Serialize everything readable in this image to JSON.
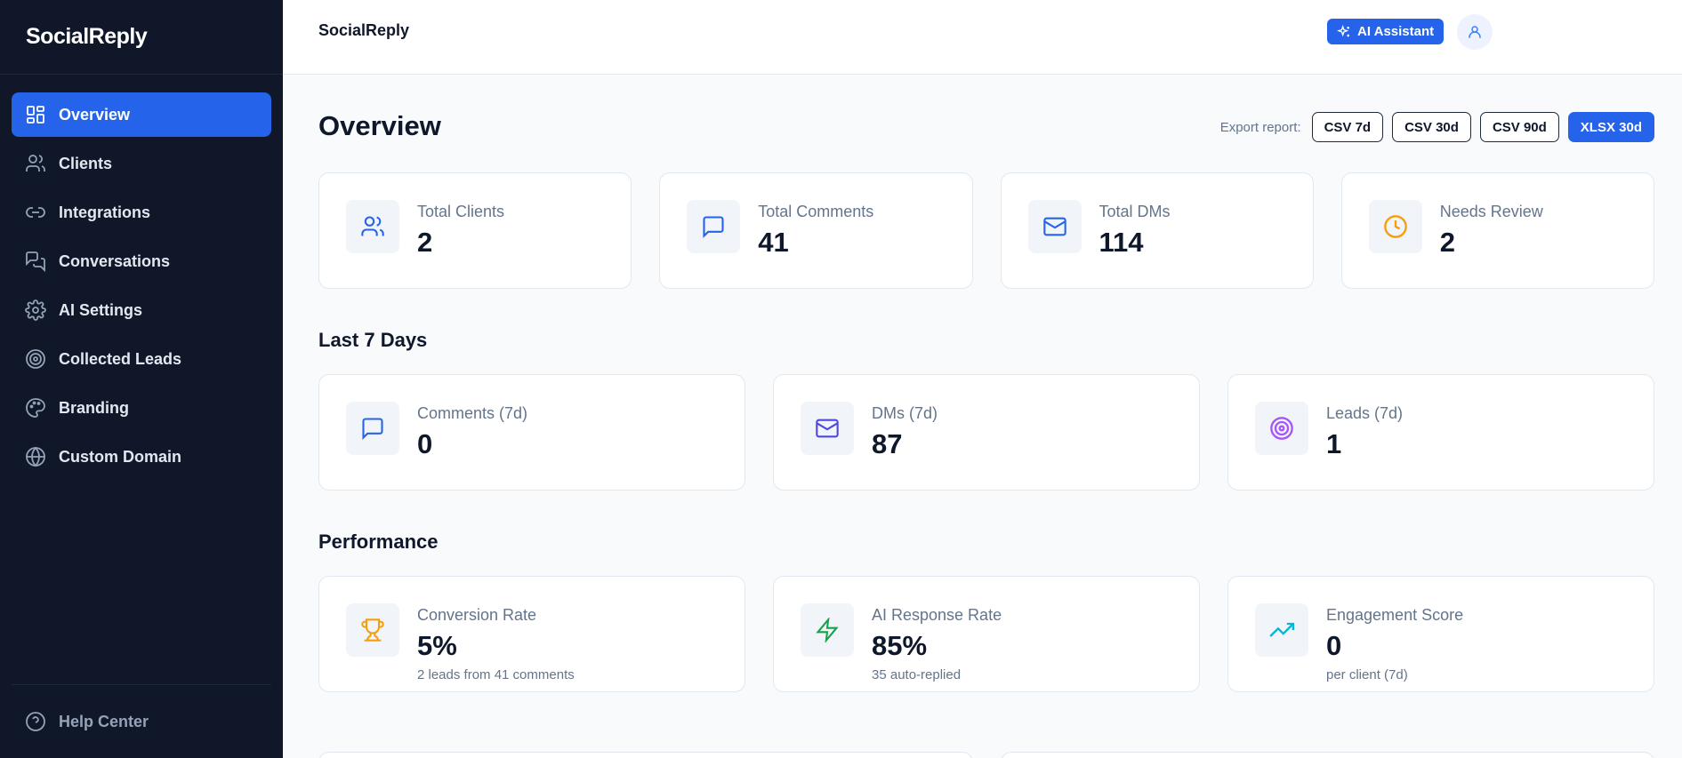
{
  "app": {
    "brand": "SocialReply"
  },
  "sidebar": {
    "items": [
      {
        "label": "Overview",
        "icon": "grid-icon",
        "active": true
      },
      {
        "label": "Clients",
        "icon": "users-icon"
      },
      {
        "label": "Integrations",
        "icon": "link-icon"
      },
      {
        "label": "Conversations",
        "icon": "messages-icon"
      },
      {
        "label": "AI Settings",
        "icon": "gear-icon"
      },
      {
        "label": "Collected Leads",
        "icon": "target-icon"
      },
      {
        "label": "Branding",
        "icon": "palette-icon"
      },
      {
        "label": "Custom Domain",
        "icon": "globe-icon"
      }
    ],
    "help": "Help Center"
  },
  "topbar": {
    "title": "SocialReply",
    "ai_button": "AI Assistant"
  },
  "page": {
    "title": "Overview",
    "export_label": "Export report:",
    "export_buttons": [
      "CSV 7d",
      "CSV 30d",
      "CSV 90d",
      "XLSX 30d"
    ]
  },
  "totals": [
    {
      "label": "Total Clients",
      "value": "2",
      "icon": "users-icon"
    },
    {
      "label": "Total Comments",
      "value": "41",
      "icon": "message-icon"
    },
    {
      "label": "Total DMs",
      "value": "114",
      "icon": "mail-icon"
    },
    {
      "label": "Needs Review",
      "value": "2",
      "icon": "clock-icon"
    }
  ],
  "last7": {
    "title": "Last 7 Days",
    "cards": [
      {
        "label": "Comments (7d)",
        "value": "0",
        "icon": "message-icon"
      },
      {
        "label": "DMs (7d)",
        "value": "87",
        "icon": "mail-icon"
      },
      {
        "label": "Leads (7d)",
        "value": "1",
        "icon": "target-icon"
      }
    ]
  },
  "performance": {
    "title": "Performance",
    "cards": [
      {
        "label": "Conversion Rate",
        "value": "5%",
        "sub": "2 leads from 41 comments",
        "icon": "trophy-icon"
      },
      {
        "label": "AI Response Rate",
        "value": "85%",
        "sub": "35 auto-replied",
        "icon": "zap-icon"
      },
      {
        "label": "Engagement Score",
        "value": "0",
        "sub": "per client (7d)",
        "icon": "trending-up-icon"
      }
    ]
  },
  "colors": {
    "sidebar_bg": "#0f1729",
    "accent": "#2563eb",
    "page_bg": "#f8fafc"
  }
}
